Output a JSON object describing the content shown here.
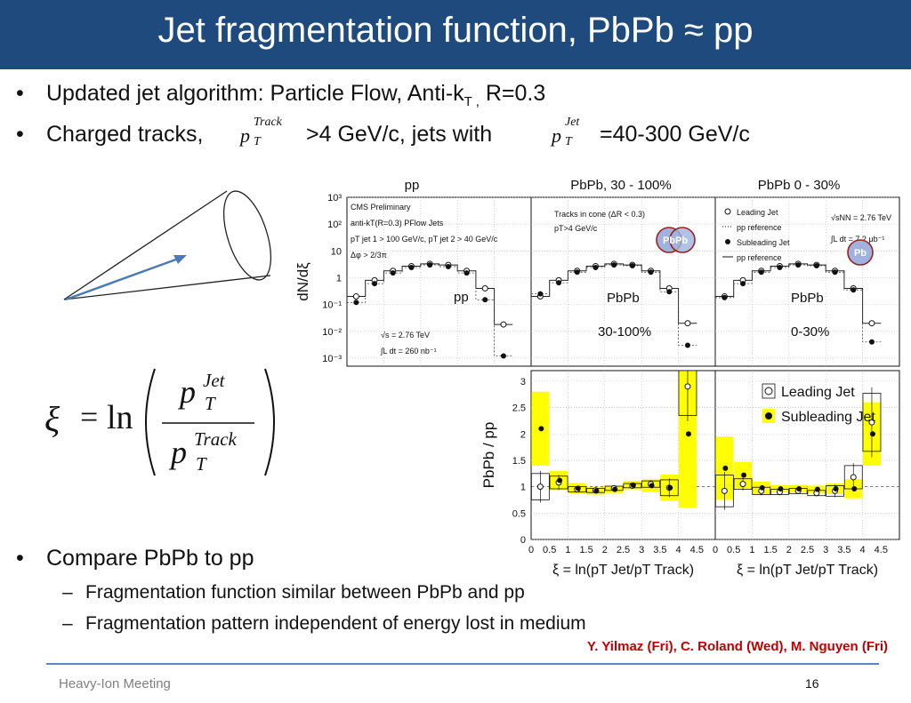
{
  "slide": {
    "title": "Jet fragmentation function, PbPb ≈ pp",
    "bullets": [
      {
        "text_a": "Updated jet algorithm: Particle Flow, Anti-k",
        "sub_T": "T ,",
        "text_b": " R=0.3"
      },
      {
        "text_a": "Charged tracks,",
        "text_b": ">4 GeV/c, jets with",
        "text_c": "=40-300 GeV/c"
      }
    ],
    "compare_bullet": "Compare PbPb to pp",
    "sub_bullets": [
      "Fragmentation function similar between PbPb and pp",
      "Fragmentation pattern independent of energy lost in medium"
    ],
    "credit": "Y. Yilmaz (Fri), C. Roland (Wed), M. Nguyen (Fri)",
    "footer": "Heavy-Ion Meeting",
    "page_number": "16",
    "colors": {
      "title_bar": "#1f4a7d",
      "credit": "#c00000",
      "highlight": "#ffff00",
      "arrow": "#4a7ab8"
    }
  },
  "formula": {
    "xi": "ξ",
    "eq": "=",
    "ln": "ln",
    "p": "p",
    "T": "T",
    "jet": "Jet",
    "track": "Track"
  },
  "chart_data": [
    {
      "type": "scatter",
      "panel": "top",
      "column_titles": [
        "pp",
        "PbPb, 30 - 100%",
        "PbPb 0 - 30%"
      ],
      "ylabel": "dN/dξ",
      "yscale": "log",
      "ylim": [
        0.0005,
        1000
      ],
      "xlim": [
        0,
        5
      ],
      "yticks": [
        "10³",
        "10²",
        "10",
        "1",
        "10⁻¹",
        "10⁻²",
        "10⁻³"
      ],
      "ytick_values": [
        1000,
        100,
        10,
        1,
        0.1,
        0.01,
        0.001
      ],
      "subpanels": [
        {
          "big_label": "pp",
          "annotations": [
            "CMS Preliminary",
            "anti-kT(R=0.3) PFlow Jets",
            "pT jet 1 > 100 GeV/c, pT jet 2 > 40 GeV/c",
            "Δφ > 2/3π",
            "√s = 2.76 TeV",
            "∫L dt = 260 nb⁻¹"
          ],
          "x": [
            0.25,
            0.75,
            1.25,
            1.75,
            2.25,
            2.75,
            3.25,
            3.75,
            4.25
          ],
          "leading": [
            0.2,
            0.8,
            1.8,
            2.7,
            3.3,
            3.0,
            1.8,
            0.4,
            0.018
          ],
          "subleading": [
            0.12,
            0.6,
            1.5,
            2.4,
            3.0,
            2.6,
            1.5,
            0.15,
            0.0012
          ]
        },
        {
          "big_label": "PbPb",
          "big_label2": "30-100%",
          "annotations": [
            "Tracks in cone (ΔR < 0.3)",
            "pT>4 GeV/c"
          ],
          "badge": "PbPb",
          "x": [
            0.25,
            0.75,
            1.25,
            1.75,
            2.25,
            2.75,
            3.25,
            3.75,
            4.25
          ],
          "leading": [
            0.2,
            0.8,
            1.8,
            2.7,
            3.3,
            3.0,
            1.8,
            0.4,
            0.02
          ],
          "subleading": [
            0.25,
            0.65,
            1.6,
            2.4,
            3.0,
            2.8,
            1.6,
            0.3,
            0.003
          ]
        },
        {
          "big_label": "PbPb",
          "big_label2": "0-30%",
          "annotations": [
            "√sNN = 2.76 TeV",
            "∫L dt = 7.2 μb⁻¹"
          ],
          "legend": [
            "Leading Jet",
            "pp reference",
            "Subleading Jet",
            "pp reference"
          ],
          "badge": "Pb",
          "x": [
            0.25,
            0.75,
            1.25,
            1.75,
            2.25,
            2.75,
            3.25,
            3.75,
            4.25
          ],
          "leading": [
            0.2,
            0.8,
            1.8,
            2.7,
            3.3,
            3.0,
            1.8,
            0.4,
            0.02
          ],
          "subleading": [
            0.18,
            0.6,
            1.6,
            2.4,
            3.0,
            2.8,
            1.6,
            0.35,
            0.004
          ]
        }
      ]
    },
    {
      "type": "scatter",
      "panel": "bottom",
      "ylabel": "PbPb / pp",
      "ylim": [
        0,
        3.2
      ],
      "yticks": [
        "0",
        "0.5",
        "1",
        "1.5",
        "2",
        "2.5",
        "3"
      ],
      "ytick_values": [
        0,
        0.5,
        1,
        1.5,
        2,
        2.5,
        3
      ],
      "xticks": [
        "0",
        "0.5",
        "1",
        "1.5",
        "2",
        "2.5",
        "3",
        "3.5",
        "4",
        "4.5"
      ],
      "xtick_values": [
        0,
        0.5,
        1,
        1.5,
        2,
        2.5,
        3,
        3.5,
        4,
        4.5
      ],
      "xlabel": "ξ = ln(pT Jet/pT Track)",
      "legend": [
        "Leading Jet",
        "Subleading Jet"
      ],
      "subpanels": [
        {
          "x": [
            0.25,
            0.75,
            1.25,
            1.75,
            2.25,
            2.75,
            3.25,
            3.75,
            4.25
          ],
          "leading": [
            1.0,
            1.08,
            0.95,
            0.93,
            0.97,
            1.02,
            1.05,
            0.98,
            2.9
          ],
          "subleading": [
            2.1,
            1.12,
            0.97,
            0.92,
            0.95,
            1.03,
            1.02,
            0.98,
            2.0
          ],
          "leading_err": [
            0.25,
            0.12,
            0.05,
            0.04,
            0.04,
            0.04,
            0.06,
            0.15,
            0.55
          ],
          "subleading_err": [
            0.7,
            0.18,
            0.1,
            0.07,
            0.07,
            0.08,
            0.12,
            0.25,
            1.4
          ]
        },
        {
          "x": [
            0.25,
            0.75,
            1.25,
            1.75,
            2.25,
            2.75,
            3.25,
            3.75,
            4.25
          ],
          "leading": [
            0.92,
            1.05,
            0.92,
            0.9,
            0.92,
            0.88,
            0.92,
            1.18,
            2.22
          ],
          "subleading": [
            1.35,
            1.22,
            0.98,
            0.96,
            0.96,
            0.95,
            0.96,
            0.96,
            2.0
          ],
          "leading_err": [
            0.3,
            0.1,
            0.07,
            0.05,
            0.05,
            0.05,
            0.1,
            0.22,
            0.55
          ],
          "subleading_err": [
            0.6,
            0.25,
            0.12,
            0.07,
            0.07,
            0.07,
            0.1,
            0.18,
            0.6
          ]
        }
      ]
    }
  ]
}
